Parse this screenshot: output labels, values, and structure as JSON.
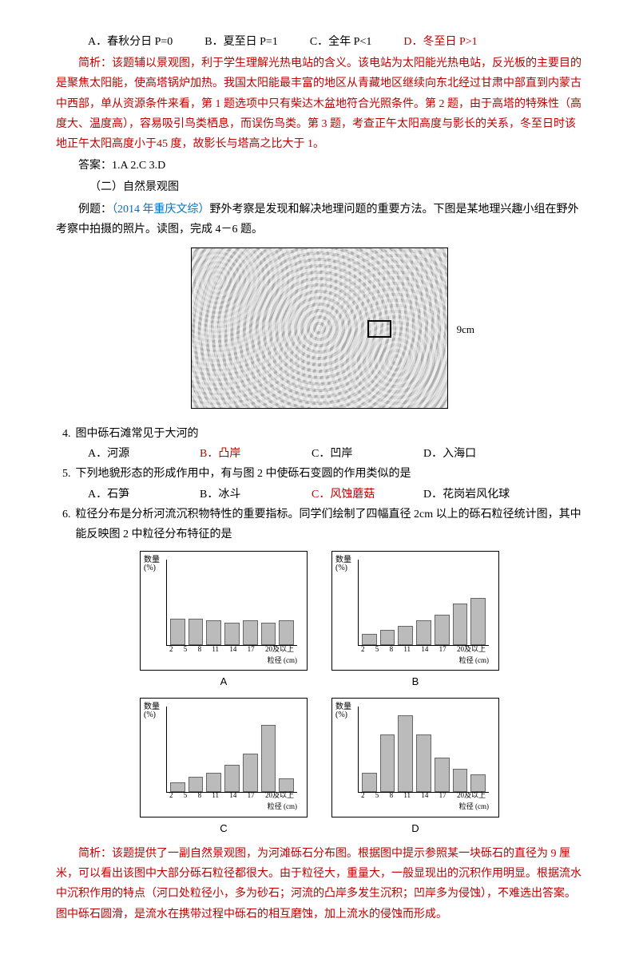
{
  "top_options": {
    "a": "A．春秋分日 P=0",
    "b": "B．夏至日 P=1",
    "c": "C．全年 P<1",
    "d": "D．冬至日 P>1"
  },
  "analysis1": "简析：该题辅以景观图，利于学生理解光热电站的含义。该电站为太阳能光热电站，反光板的主要目的是聚焦太阳能，使高塔锅炉加热。我国太阳能最丰富的地区从青藏地区继续向东北经过甘肃中部直到内蒙古中西部，单从资源条件来看，第 1 题选项中只有柴达木盆地符合光照条件。第 2 题，由于高塔的特殊性（高度大、温度高），容易吸引鸟类栖息，而误伤鸟类。第 3 题，考查正午太阳高度与影长的关系，冬至日时该地正午太阳高度小于45 度，故影长与塔高之比大于 1。",
  "answers1": "答案：1.A   2.C   3.D",
  "section2": "（二）自然景观图",
  "example_label": "例题：",
  "example_src": "（2014 年重庆文综）",
  "example_text": "野外考察是发现和解决地理问题的重要方法。下图是某地理兴趣小组在野外考察中拍摄的照片。读图，完成 4－6 题。",
  "photo_label": "9cm",
  "q4": {
    "num": "4.",
    "text": "图中砾石滩常见于大河的",
    "a": "A．河源",
    "b": "B．凸岸",
    "c": "C．凹岸",
    "d": "D．入海口"
  },
  "q5": {
    "num": "5.",
    "text": "下列地貌形态的形成作用中，有与图 2 中使砾石变圆的作用类似的是",
    "a": "A．石笋",
    "b": "B．冰斗",
    "c": "C．风蚀蘑菇",
    "d": "D．花岗岩风化球"
  },
  "q6": {
    "num": "6.",
    "text": "粒径分布是分析河流沉积物特性的重要指标。同学们绘制了四幅直径 2cm 以上的砾石粒径统计图，其中能反映图 2 中粒径分布特征的是"
  },
  "charts": {
    "ylabel": "数量(%)",
    "xlabel": "粒径 (cm)",
    "ymax": 45,
    "xticks": [
      "2",
      "5",
      "8",
      "11",
      "14",
      "17",
      "20及以上"
    ],
    "A": {
      "label": "A",
      "values": [
        14,
        14,
        13,
        12,
        13,
        12,
        13
      ]
    },
    "B": {
      "label": "B",
      "values": [
        6,
        8,
        10,
        13,
        16,
        22,
        25
      ]
    },
    "C": {
      "label": "C",
      "values": [
        5,
        8,
        10,
        14,
        20,
        35,
        7
      ]
    },
    "D": {
      "label": "D",
      "values": [
        10,
        30,
        40,
        30,
        18,
        12,
        9
      ]
    },
    "bar_color": "#bbbbbb",
    "border_color": "#000000"
  },
  "analysis2": "简析：该题提供了一副自然景观图，为河滩砾石分布图。根据图中提示参照某一块砾石的直径为 9 厘米，可以看出该图中大部分砾石粒径都很大。由于粒径大，重量大，一般显现出的沉积作用明显。根据流水中沉积作用的特点（河口处粒径小，多为砂石；河流的凸岸多发生沉积；凹岸多为侵蚀），不难选出答案。图中砾石圆滑，是流水在携带过程中砾石的相互磨蚀，加上流水的侵蚀而形成。"
}
